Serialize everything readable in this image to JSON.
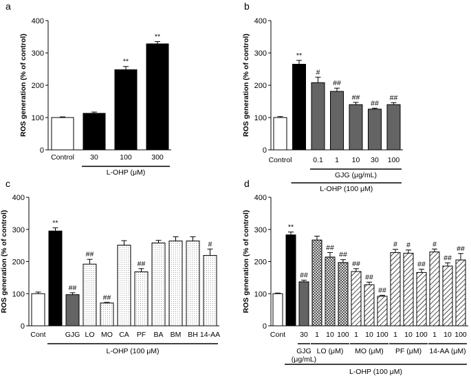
{
  "chart_data": [
    {
      "panel": "a",
      "type": "bar",
      "ylabel": "ROS generation (% of control)",
      "ylim": [
        0,
        400
      ],
      "yticks": [
        "0",
        "100",
        "200",
        "300",
        "400"
      ],
      "categories": [
        "Control",
        "30",
        "100",
        "300"
      ],
      "values": [
        100,
        113,
        248,
        328
      ],
      "errors": [
        2,
        4,
        10,
        7
      ],
      "fills": [
        "white",
        "black",
        "black",
        "black"
      ],
      "annotations": [
        "",
        "",
        "**",
        "**"
      ],
      "groups": [
        {
          "label": "L-OHP (μM)",
          "from": 1,
          "to": 3
        }
      ]
    },
    {
      "panel": "b",
      "type": "bar",
      "ylabel": "ROS generation (% of control)",
      "ylim": [
        0,
        400
      ],
      "yticks": [
        "0",
        "100",
        "200",
        "300",
        "400"
      ],
      "categories": [
        "Control",
        "",
        "0.1",
        "1",
        "10",
        "30",
        "100"
      ],
      "values": [
        100,
        265,
        208,
        181,
        140,
        126,
        140
      ],
      "errors": [
        3,
        12,
        17,
        10,
        7,
        3,
        6
      ],
      "fills": [
        "white",
        "black",
        "gray",
        "gray",
        "gray",
        "gray",
        "gray"
      ],
      "annotations": [
        "",
        "**",
        "#",
        "##",
        "##",
        "##",
        "##"
      ],
      "groups": [
        {
          "label": "GJG (μg/mL)",
          "from": 2,
          "to": 6
        },
        {
          "label": "L-OHP (100 μM)",
          "from": 1,
          "to": 6
        }
      ]
    },
    {
      "panel": "c",
      "type": "bar",
      "ylabel": "ROS generation (% of control)",
      "ylim": [
        0,
        400
      ],
      "yticks": [
        "0",
        "100",
        "200",
        "300",
        "400"
      ],
      "categories": [
        "Cont",
        "",
        "GJG",
        "LO",
        "MO",
        "CA",
        "PF",
        "BA",
        "BM",
        "BH",
        "14-AA"
      ],
      "values": [
        100,
        295,
        97,
        192,
        71,
        251,
        168,
        258,
        264,
        264,
        219
      ],
      "errors": [
        5,
        10,
        6,
        15,
        2,
        14,
        10,
        8,
        13,
        13,
        20
      ],
      "fills": [
        "white",
        "black",
        "gray",
        "dot",
        "dot",
        "dot",
        "dot",
        "dot",
        "dot",
        "dot",
        "dot"
      ],
      "annotations": [
        "",
        "**",
        "##",
        "##",
        "##",
        "",
        "##",
        "",
        "",
        "",
        "#"
      ],
      "groups": [
        {
          "label": "L-OHP (100 μM)",
          "from": 1,
          "to": 10
        }
      ]
    },
    {
      "panel": "d",
      "type": "bar",
      "ylabel": "ROS generation (% of control)",
      "ylim": [
        0,
        400
      ],
      "yticks": [
        "0",
        "100",
        "200",
        "300",
        "400"
      ],
      "categories": [
        "Cont",
        "",
        "30",
        "1",
        "10",
        "100",
        "1",
        "10",
        "100",
        "1",
        "10",
        "100",
        "1",
        "10",
        "100"
      ],
      "values": [
        100,
        283,
        137,
        267,
        214,
        197,
        169,
        128,
        92,
        228,
        226,
        166,
        230,
        186,
        205
      ],
      "errors": [
        2,
        9,
        5,
        12,
        14,
        9,
        9,
        8,
        3,
        10,
        10,
        10,
        9,
        10,
        20
      ],
      "fills": [
        "white",
        "black",
        "gray",
        "cross",
        "cross",
        "cross",
        "diag",
        "diag",
        "diag",
        "diag",
        "diag",
        "diag",
        "diag",
        "diag",
        "diag"
      ],
      "annotations": [
        "",
        "**",
        "##",
        "",
        "##",
        "##",
        "##",
        "##",
        "##",
        "#",
        "#",
        "##",
        "#",
        "##",
        "##"
      ],
      "groups": [
        {
          "label": "GJG\n(μg/mL)",
          "from": 2,
          "to": 2
        },
        {
          "label": "LO (μM)",
          "from": 3,
          "to": 5
        },
        {
          "label": "MO (μM)",
          "from": 6,
          "to": 8
        },
        {
          "label": "PF (μM)",
          "from": 9,
          "to": 11
        },
        {
          "label": "14-AA (μM)",
          "from": 12,
          "to": 14
        },
        {
          "label": "L-OHP (100 μM)",
          "from": 1,
          "to": 14
        }
      ]
    }
  ]
}
